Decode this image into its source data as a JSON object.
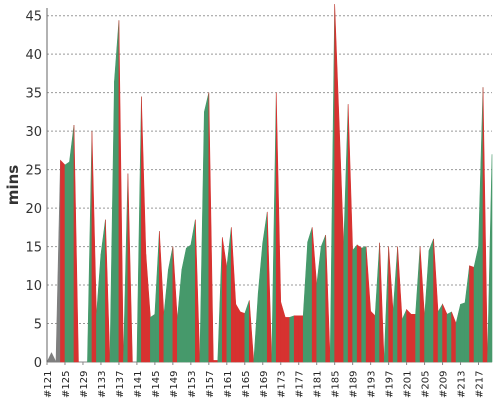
{
  "chart_data": {
    "type": "area",
    "title": "",
    "xlabel": "",
    "ylabel": "mins",
    "ylim": [
      0,
      46
    ],
    "yticks": [
      0,
      5,
      10,
      15,
      20,
      25,
      30,
      35,
      40,
      45
    ],
    "grid": true,
    "legend": "none",
    "x_start": 121,
    "x_end": 219,
    "xtick_labels": [
      "#121",
      "#125",
      "#129",
      "#133",
      "#137",
      "#141",
      "#145",
      "#149",
      "#153",
      "#157",
      "#161",
      "#165",
      "#169",
      "#173",
      "#177",
      "#181",
      "#185",
      "#189",
      "#193",
      "#197",
      "#201",
      "#205",
      "#209",
      "#213",
      "#217"
    ],
    "values": [
      0,
      1.2,
      0,
      26.2,
      25.6,
      26,
      30.8,
      0,
      0,
      0,
      30,
      6,
      14,
      18.5,
      0,
      36.5,
      44.4,
      0,
      24.5,
      0,
      0,
      34.5,
      14,
      5.8,
      6.2,
      17,
      6,
      12,
      15,
      5.5,
      12,
      14.8,
      15.2,
      18.5,
      0,
      32.5,
      35,
      0.2,
      0.2,
      16.2,
      12.3,
      17.5,
      7.5,
      6.5,
      6.3,
      8,
      0,
      9,
      15.5,
      19.5,
      0,
      35,
      7.8,
      5.8,
      5.8,
      6,
      6,
      6,
      15.6,
      17.5,
      10,
      15,
      16.5,
      0,
      46.5,
      31,
      15,
      33.5,
      14.5,
      15.2,
      14.8,
      15,
      6.6,
      6,
      15.5,
      0,
      15,
      6.5,
      15,
      5.5,
      6.8,
      6.2,
      6.2,
      15,
      5.8,
      14.5,
      16,
      6.5,
      7.5,
      6.2,
      6.5,
      5,
      7.5,
      7.7,
      12.5,
      12.3,
      15,
      35.7,
      0,
      27
    ],
    "colors": {
      "slow": "#d73230",
      "fast": "#46996b",
      "other": "#7f7f7f",
      "grid": "#999999"
    }
  }
}
